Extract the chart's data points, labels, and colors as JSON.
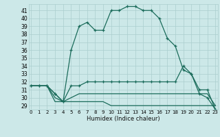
{
  "xlabel": "Humidex (Indice chaleur)",
  "x": [
    0,
    1,
    2,
    3,
    4,
    5,
    6,
    7,
    8,
    9,
    10,
    11,
    12,
    13,
    14,
    15,
    16,
    17,
    18,
    19,
    20,
    21,
    22,
    23
  ],
  "line1": [
    31.5,
    31.5,
    31.5,
    30.5,
    29.5,
    36.0,
    39.0,
    39.5,
    38.5,
    38.5,
    41.0,
    41.0,
    41.5,
    41.5,
    41.0,
    41.0,
    40.0,
    37.5,
    36.5,
    33.5,
    33.0,
    30.5,
    30.0,
    28.5
  ],
  "line2": [
    31.5,
    31.5,
    31.5,
    30.5,
    29.5,
    31.5,
    31.5,
    32.0,
    32.0,
    32.0,
    32.0,
    32.0,
    32.0,
    32.0,
    32.0,
    32.0,
    32.0,
    32.0,
    32.0,
    34.0,
    33.0,
    31.0,
    31.0,
    28.5
  ],
  "line3": [
    31.5,
    31.5,
    31.5,
    30.0,
    29.5,
    30.0,
    30.5,
    30.5,
    30.5,
    30.5,
    30.5,
    30.5,
    30.5,
    30.5,
    30.5,
    30.5,
    30.5,
    30.5,
    30.5,
    30.5,
    30.5,
    30.5,
    30.5,
    29.0
  ],
  "line4": [
    31.5,
    31.5,
    31.5,
    29.5,
    29.5,
    29.5,
    29.5,
    29.5,
    29.5,
    29.5,
    29.0,
    29.0,
    29.0,
    29.0,
    29.0,
    29.0,
    29.0,
    29.0,
    29.0,
    29.0,
    29.0,
    29.0,
    29.0,
    29.0
  ],
  "color": "#1a6b5a",
  "bg_color": "#cce8e8",
  "grid_color": "#aacece",
  "ylim": [
    28.5,
    41.8
  ],
  "yticks": [
    29,
    30,
    31,
    32,
    33,
    34,
    35,
    36,
    37,
    38,
    39,
    40,
    41
  ],
  "xlim": [
    -0.3,
    23.3
  ]
}
